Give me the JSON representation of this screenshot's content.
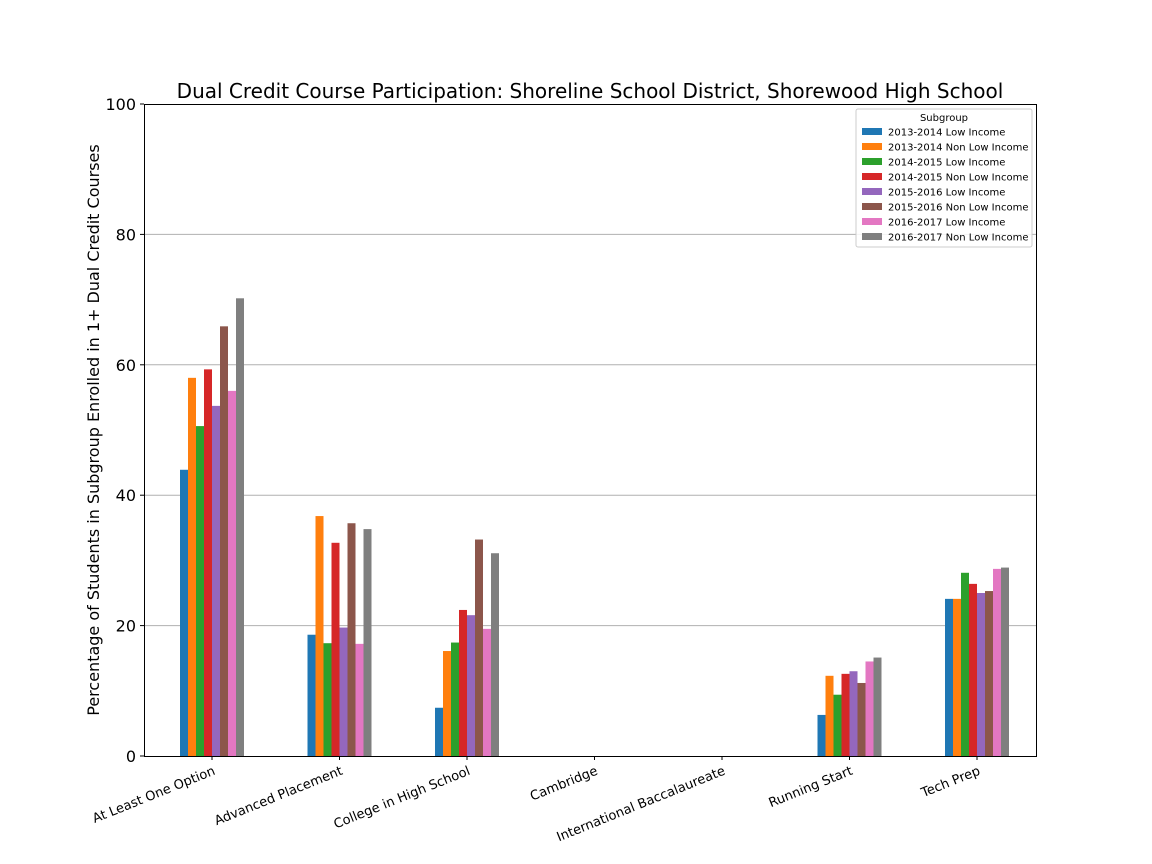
{
  "chart_data": {
    "type": "bar",
    "title": "Dual Credit Course Participation: Shoreline School District, Shorewood High School",
    "xlabel": "",
    "ylabel": "Percentage of Students in Subgroup Enrolled in 1+ Dual Credit Courses",
    "ylim": [
      0,
      100
    ],
    "yticks": [
      "0",
      "20",
      "40",
      "60",
      "80",
      "100"
    ],
    "ytick_values": [
      0,
      20,
      40,
      60,
      80,
      100
    ],
    "grid": "y",
    "legend_title": "Subgroup",
    "legend_position": "top-right",
    "categories": [
      "At Least One Option",
      "Advanced Placement",
      "College in High School",
      "Cambridge",
      "International Baccalaureate",
      "Running Start",
      "Tech Prep"
    ],
    "series": [
      {
        "name": "2013-2014 Low Income",
        "color": "#1f77b4",
        "values": [
          43.9,
          18.6,
          7.4,
          0,
          0,
          6.3,
          24.1
        ]
      },
      {
        "name": "2013-2014 Non Low Income",
        "color": "#ff7f0e",
        "values": [
          58.0,
          36.8,
          16.1,
          0,
          0,
          12.3,
          24.1
        ]
      },
      {
        "name": "2014-2015 Low Income",
        "color": "#2ca02c",
        "values": [
          50.6,
          17.3,
          17.4,
          0,
          0,
          9.4,
          28.1
        ]
      },
      {
        "name": "2014-2015 Non Low Income",
        "color": "#d62728",
        "values": [
          59.3,
          32.7,
          22.4,
          0,
          0,
          12.6,
          26.4
        ]
      },
      {
        "name": "2015-2016 Low Income",
        "color": "#9467bd",
        "values": [
          53.7,
          19.7,
          21.6,
          0,
          0,
          13.0,
          25.0
        ]
      },
      {
        "name": "2015-2016 Non Low Income",
        "color": "#8c564b",
        "values": [
          65.9,
          35.7,
          33.2,
          0,
          0,
          11.2,
          25.3
        ]
      },
      {
        "name": "2016-2017 Low Income",
        "color": "#e377c2",
        "values": [
          56.0,
          17.2,
          19.5,
          0,
          0,
          14.5,
          28.7
        ]
      },
      {
        "name": "2016-2017 Non Low Income",
        "color": "#7f7f7f",
        "values": [
          70.2,
          34.8,
          31.1,
          0,
          0,
          15.1,
          28.9
        ]
      }
    ]
  }
}
